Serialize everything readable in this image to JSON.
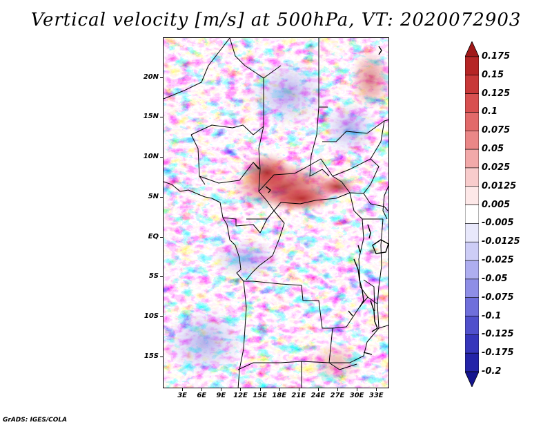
{
  "title": "Vertical velocity [m/s] at 500hPa, VT: 2020072903",
  "map": {
    "variable": "vertical velocity",
    "units": "m/s",
    "level": "500hPa",
    "valid_time": "2020072903",
    "lon_range": [
      0,
      35
    ],
    "lat_range": [
      -19,
      25
    ],
    "lat_labels": [
      {
        "value": 20,
        "text": "20N"
      },
      {
        "value": 15,
        "text": "15N"
      },
      {
        "value": 10,
        "text": "10N"
      },
      {
        "value": 5,
        "text": "5N"
      },
      {
        "value": 0,
        "text": "EQ"
      },
      {
        "value": -5,
        "text": "5S"
      },
      {
        "value": -10,
        "text": "10S"
      },
      {
        "value": -15,
        "text": "15S"
      }
    ],
    "lon_labels": [
      {
        "value": 3,
        "text": "3E"
      },
      {
        "value": 6,
        "text": "6E"
      },
      {
        "value": 9,
        "text": "9E"
      },
      {
        "value": 12,
        "text": "12E"
      },
      {
        "value": 15,
        "text": "15E"
      },
      {
        "value": 18,
        "text": "18E"
      },
      {
        "value": 21,
        "text": "21E"
      },
      {
        "value": 24,
        "text": "24E"
      },
      {
        "value": 27,
        "text": "27E"
      },
      {
        "value": 30,
        "text": "30E"
      },
      {
        "value": 33,
        "text": "33E"
      }
    ]
  },
  "colorbar": {
    "labels": [
      "0.175",
      "0.15",
      "0.125",
      "0.1",
      "0.075",
      "0.05",
      "0.025",
      "0.0125",
      "0.005",
      "-0.005",
      "-0.0125",
      "-0.025",
      "-0.05",
      "-0.075",
      "-0.1",
      "-0.125",
      "-0.175",
      "-0.2"
    ],
    "colors": [
      "#a01818",
      "#b52525",
      "#c83838",
      "#d85050",
      "#e26a6a",
      "#ea8787",
      "#f2a9a9",
      "#f8cccc",
      "#fde8e8",
      "#ffffff",
      "#e8e8fb",
      "#cdcdf6",
      "#aeaef0",
      "#8e8ee6",
      "#6f6fdb",
      "#5050cc",
      "#3636bb",
      "#2424a8",
      "#15158f"
    ]
  },
  "credit": "GrADS: IGES/COLA"
}
